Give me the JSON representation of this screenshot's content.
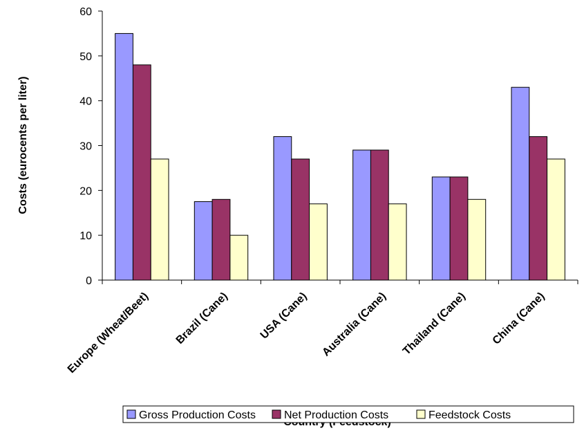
{
  "chart_data": {
    "type": "bar",
    "title": "",
    "xlabel": "Country (Feedstock)",
    "ylabel": "Costs (eurocents per liter)",
    "ylim": [
      0,
      60
    ],
    "yticks": [
      0,
      10,
      20,
      30,
      40,
      50,
      60
    ],
    "grid": false,
    "legend_position": "bottom",
    "categories": [
      "Europe (Wheat/Beet)",
      "Brazil (Cane)",
      "USA (Cane)",
      "Australia (Cane)",
      "Thailand (Cane)",
      "China (Cane)"
    ],
    "series": [
      {
        "name": "Gross Production Costs",
        "color": "#9999FF",
        "values": [
          55,
          17.5,
          32,
          29,
          23,
          43
        ]
      },
      {
        "name": "Net Production Costs",
        "color": "#993366",
        "values": [
          48,
          18,
          27,
          29,
          23,
          32
        ]
      },
      {
        "name": "Feedstock Costs",
        "color": "#FFFFCC",
        "values": [
          27,
          10,
          17,
          17,
          18,
          27
        ]
      }
    ]
  }
}
